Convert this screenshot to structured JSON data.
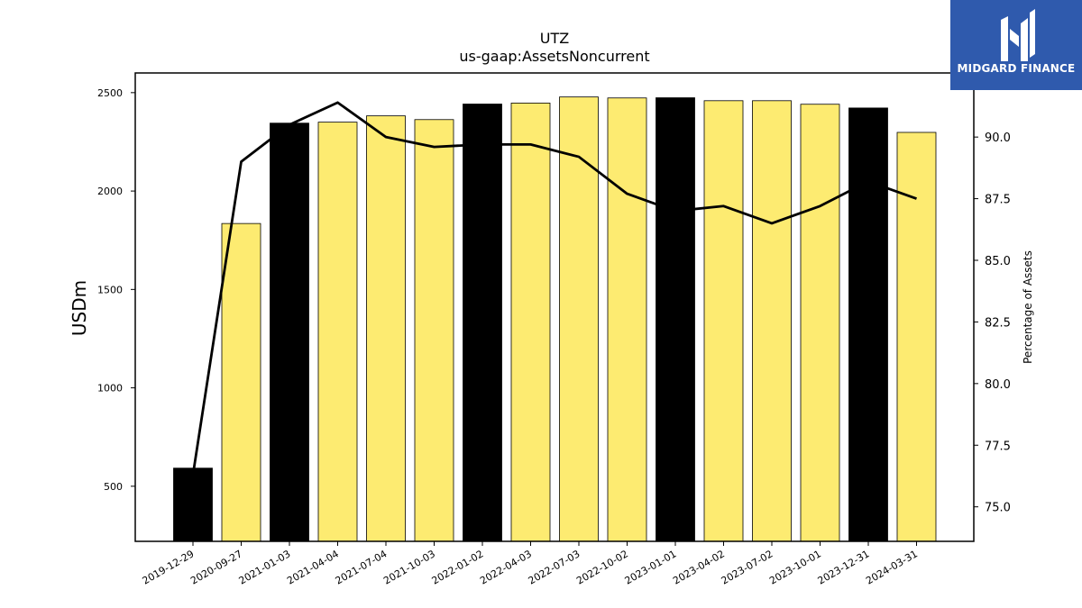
{
  "chart_data": {
    "type": "bar",
    "title": "UTZ",
    "subtitle": "us-gaap:AssetsNoncurrent",
    "ylabel": "USDm",
    "y2label": "Percentage of Assets",
    "categories": [
      "2019-12-29",
      "2020-09-27",
      "2021-01-03",
      "2021-04-04",
      "2021-07-04",
      "2021-10-03",
      "2022-01-02",
      "2022-04-03",
      "2022-07-03",
      "2022-10-02",
      "2023-01-01",
      "2023-04-02",
      "2023-07-02",
      "2023-10-01",
      "2023-12-31",
      "2024-03-31"
    ],
    "series": [
      {
        "type": "bar",
        "axis": "left",
        "values": [
          592,
          1835,
          2345,
          2350,
          2382,
          2363,
          2442,
          2447,
          2478,
          2473,
          2474,
          2459,
          2459,
          2441,
          2422,
          2298
        ]
      },
      {
        "type": "line",
        "axis": "right",
        "values": [
          76.3,
          89.0,
          90.5,
          91.4,
          90.0,
          89.6,
          89.7,
          89.7,
          89.2,
          87.7,
          87.0,
          87.2,
          86.5,
          87.2,
          88.2,
          87.5
        ]
      }
    ],
    "bar_colors": [
      "#000000",
      "#fdeb71",
      "#000000",
      "#fdeb71",
      "#fdeb71",
      "#fdeb71",
      "#000000",
      "#fdeb71",
      "#fdeb71",
      "#fdeb71",
      "#000000",
      "#fdeb71",
      "#fdeb71",
      "#fdeb71",
      "#000000",
      "#fdeb71"
    ],
    "line_color": "#000000",
    "ylim": [
      220,
      2600
    ],
    "y2lim": [
      73.6,
      92.6
    ],
    "yticks": [
      500,
      1000,
      1500,
      2000,
      2500
    ],
    "y2ticks": [
      75.0,
      77.5,
      80.0,
      82.5,
      85.0,
      87.5,
      90.0
    ],
    "grid": false
  },
  "logo": {
    "text": "MIDGARD FINANCE",
    "color": "#2f5aad"
  }
}
